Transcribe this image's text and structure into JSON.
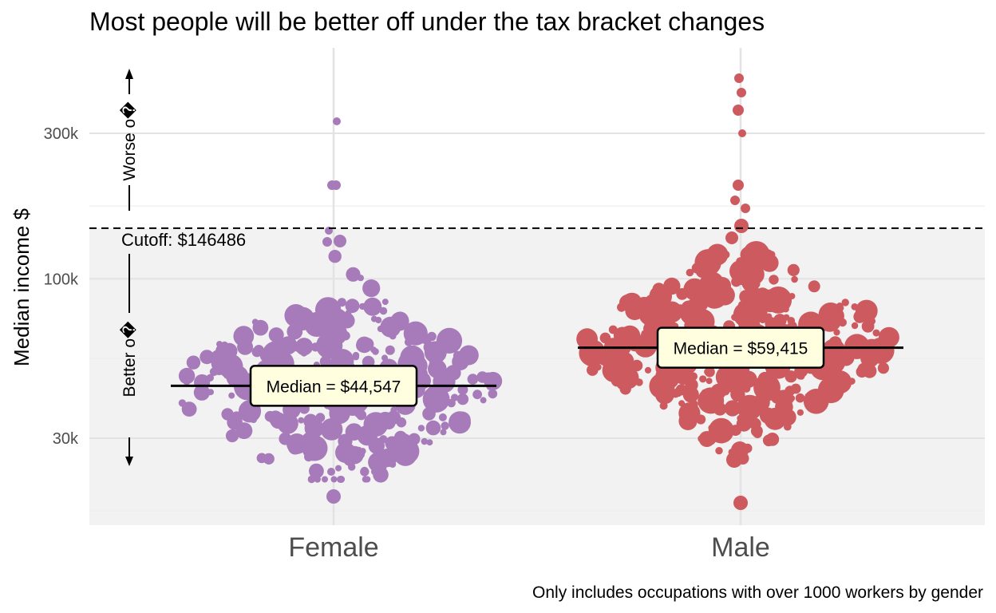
{
  "chart_data": {
    "type": "scatter",
    "title": "Most people will be better off under the tax bracket changes",
    "xlabel": "",
    "ylabel": "Median income $",
    "y_scale": "log",
    "ylim": [
      17000,
      500000
    ],
    "y_ticks": [
      {
        "value": 30000,
        "label": "30k"
      },
      {
        "value": 100000,
        "label": "100k"
      },
      {
        "value": 300000,
        "label": "300k"
      }
    ],
    "categories": [
      "Female",
      "Male"
    ],
    "series": [
      {
        "category": "Female",
        "color": "#a77bba",
        "median": 44547,
        "median_label": "Median = $44,547"
      },
      {
        "category": "Male",
        "color": "#cd5a5e",
        "median": 59415,
        "median_label": "Median = $59,415"
      }
    ],
    "cutoff": {
      "value": 146486,
      "label": "Cutoff: $146486"
    },
    "annotations": {
      "worse": "Worse o�",
      "better": "Better o�"
    },
    "shaded_region_color": "#f2f2f2",
    "caption": "Only includes occupations with over 1000 workers by gender",
    "grid": true
  }
}
